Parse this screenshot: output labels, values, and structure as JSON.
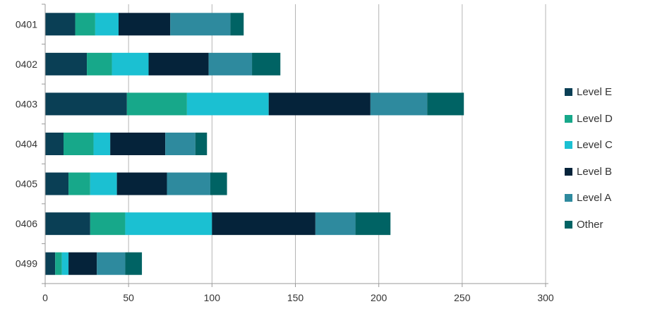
{
  "chart_data": {
    "type": "bar",
    "orientation": "horizontal",
    "stacked": true,
    "categories": [
      "0401",
      "0402",
      "0403",
      "0404",
      "0405",
      "0406",
      "0499"
    ],
    "series": [
      {
        "name": "Level E",
        "color": "#0a3f55",
        "values": [
          18,
          25,
          49,
          11,
          14,
          27,
          6
        ]
      },
      {
        "name": "Level D",
        "color": "#17a88a",
        "values": [
          12,
          15,
          36,
          18,
          13,
          21,
          4
        ]
      },
      {
        "name": "Level C",
        "color": "#1bc0d2",
        "values": [
          14,
          22,
          49,
          10,
          16,
          52,
          4
        ]
      },
      {
        "name": "Level B",
        "color": "#05233a",
        "values": [
          31,
          36,
          61,
          33,
          30,
          62,
          17
        ]
      },
      {
        "name": "Level A",
        "color": "#2e8a9e",
        "values": [
          36,
          26,
          34,
          18,
          26,
          24,
          17
        ]
      },
      {
        "name": "Other",
        "color": "#006364",
        "values": [
          8,
          17,
          22,
          7,
          10,
          21,
          10
        ]
      }
    ],
    "x_ticks": [
      "0",
      "50",
      "100",
      "150",
      "200",
      "250",
      "300"
    ],
    "xlim": [
      0,
      300
    ],
    "title": "",
    "xlabel": "",
    "ylabel": "",
    "grid": "vertical",
    "legend_position": "right"
  }
}
